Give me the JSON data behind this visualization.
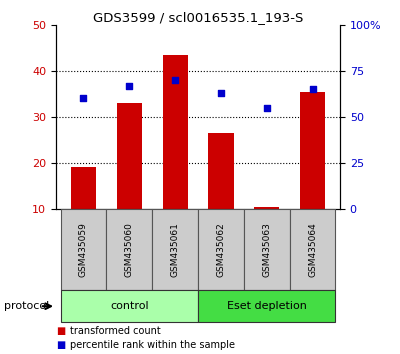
{
  "title": "GDS3599 / scl0016535.1_193-S",
  "samples": [
    "GSM435059",
    "GSM435060",
    "GSM435061",
    "GSM435062",
    "GSM435063",
    "GSM435064"
  ],
  "bar_values": [
    19.0,
    33.0,
    43.5,
    26.5,
    10.3,
    35.5
  ],
  "dot_values_pct": [
    60.0,
    67.0,
    70.0,
    63.0,
    55.0,
    65.0
  ],
  "bar_bottom": 10,
  "left_ylim": [
    10,
    50
  ],
  "left_yticks": [
    10,
    20,
    30,
    40,
    50
  ],
  "right_ylim": [
    0,
    100
  ],
  "right_yticks": [
    0,
    25,
    50,
    75,
    100
  ],
  "right_yticklabels": [
    "0",
    "25",
    "50",
    "75",
    "100%"
  ],
  "bar_color": "#cc0000",
  "dot_color": "#0000cc",
  "bar_width": 0.55,
  "groups": [
    {
      "label": "control",
      "indices": [
        0,
        1,
        2
      ],
      "color": "#aaffaa"
    },
    {
      "label": "Eset depletion",
      "indices": [
        3,
        4,
        5
      ],
      "color": "#44dd44"
    }
  ],
  "protocol_label": "protocol",
  "legend_bar_label": "transformed count",
  "legend_dot_label": "percentile rank within the sample",
  "tick_label_color_left": "#cc0000",
  "tick_label_color_right": "#0000cc"
}
